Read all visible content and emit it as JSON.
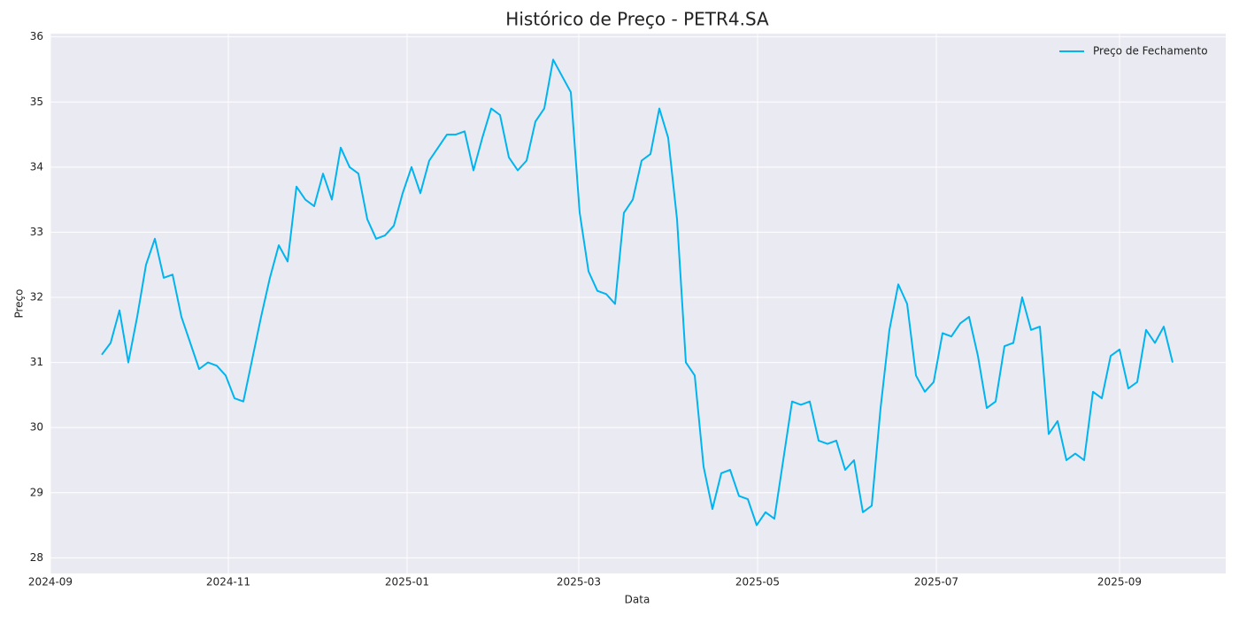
{
  "chart_data": {
    "type": "line",
    "title": "Histórico de Preço - PETR4.SA",
    "x_label": "Data",
    "y_label": "Preço",
    "series": [
      {
        "name": "Preço de Fechamento",
        "color": "#00b4f0",
        "values": [
          31.12,
          31.3,
          31.8,
          31.0,
          31.7,
          32.5,
          32.9,
          32.3,
          32.35,
          31.7,
          31.3,
          30.9,
          31.0,
          30.95,
          30.8,
          30.45,
          30.4,
          31.05,
          31.7,
          32.3,
          32.8,
          32.55,
          33.7,
          33.5,
          33.4,
          33.9,
          33.5,
          34.3,
          34.0,
          33.9,
          33.2,
          32.9,
          32.95,
          33.1,
          33.6,
          34.0,
          33.6,
          34.1,
          34.3,
          34.5,
          34.5,
          34.55,
          33.95,
          34.45,
          34.9,
          34.8,
          34.15,
          33.95,
          34.1,
          34.7,
          34.9,
          35.65,
          35.4,
          35.15,
          33.3,
          32.4,
          32.1,
          32.05,
          31.9,
          33.3,
          33.5,
          34.1,
          34.2,
          34.9,
          34.45,
          33.2,
          31.0,
          30.8,
          29.4,
          28.75,
          29.3,
          29.35,
          28.95,
          28.9,
          28.5,
          28.7,
          28.6,
          29.5,
          30.4,
          30.35,
          30.4,
          29.8,
          29.75,
          29.8,
          29.35,
          29.5,
          28.7,
          28.8,
          30.3,
          31.5,
          32.2,
          31.9,
          30.8,
          30.55,
          30.7,
          31.45,
          31.4,
          31.6,
          31.7,
          31.1,
          30.3,
          30.4,
          31.25,
          31.3,
          32.0,
          31.5,
          31.55,
          29.9,
          30.1,
          29.5,
          29.6,
          29.5,
          30.55,
          30.45,
          31.1,
          31.2,
          30.6,
          30.7,
          31.5,
          31.3,
          31.55,
          31.0
        ]
      }
    ],
    "xlim": [
      -5.8,
      127
    ],
    "xticks": [
      {
        "value": -5.8,
        "label": "2024-09"
      },
      {
        "value": 14.3,
        "label": "2024-11"
      },
      {
        "value": 34.5,
        "label": "2025-01"
      },
      {
        "value": 53.9,
        "label": "2025-03"
      },
      {
        "value": 74.1,
        "label": "2025-05"
      },
      {
        "value": 94.3,
        "label": "2025-07"
      },
      {
        "value": 115,
        "label": "2025-09"
      }
    ],
    "ylim": [
      27.76,
      36.05
    ],
    "yticks": [
      28,
      29,
      30,
      31,
      32,
      33,
      34,
      35,
      36
    ],
    "grid": true,
    "legend": "upper right"
  }
}
